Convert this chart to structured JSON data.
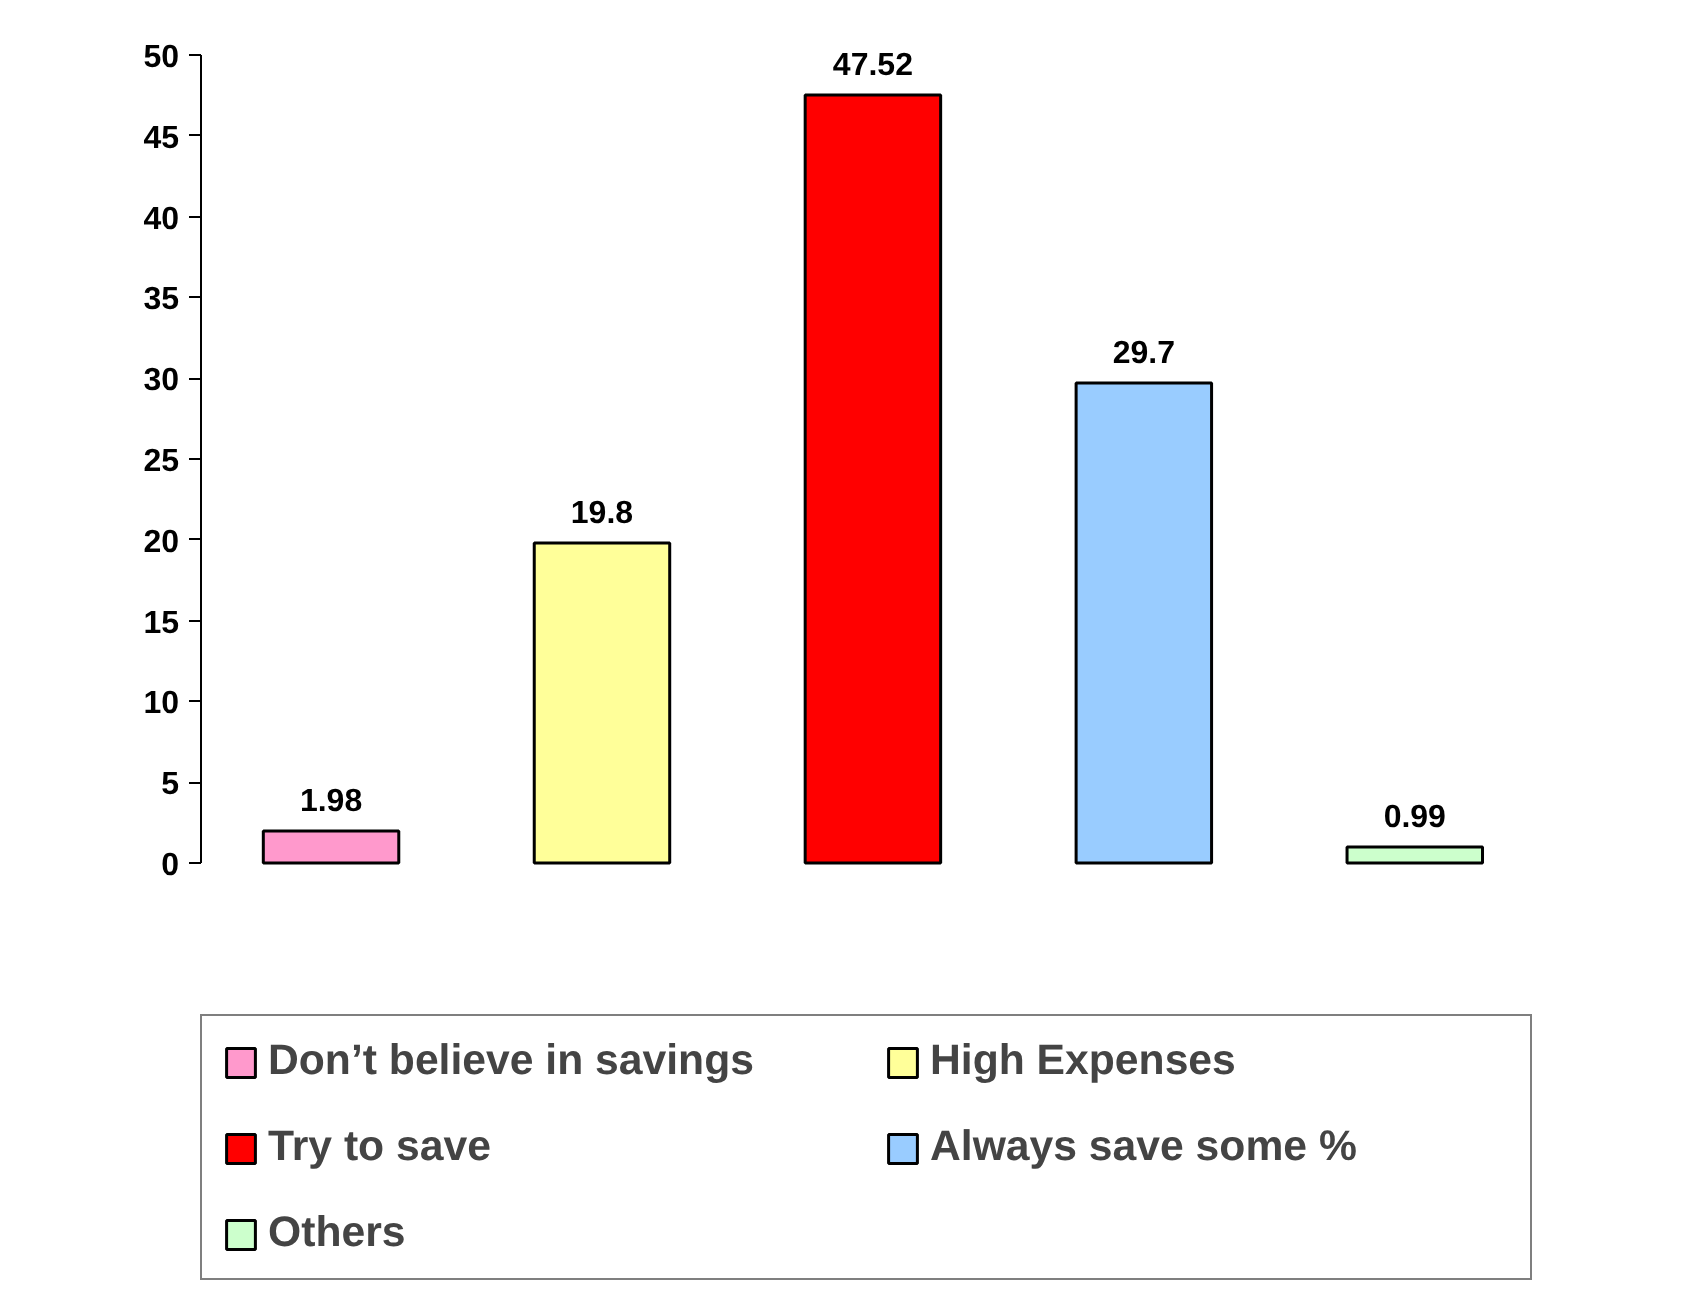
{
  "chart_data": {
    "type": "bar",
    "stacked": true,
    "categories": [
      null,
      null,
      null,
      null,
      null
    ],
    "series": [
      {
        "name": "Don’t believe in savings",
        "color": "#ff99cc",
        "values": [
          1.98,
          null,
          null,
          null,
          null
        ]
      },
      {
        "name": "High Expenses",
        "color": "#ffff99",
        "values": [
          null,
          19.8,
          null,
          null,
          null
        ]
      },
      {
        "name": "Try to save",
        "color": "#ff0000",
        "values": [
          null,
          null,
          47.52,
          null,
          null
        ]
      },
      {
        "name": "Always save some %",
        "color": "#99ccff",
        "values": [
          null,
          null,
          null,
          29.7,
          null
        ]
      },
      {
        "name": "Others",
        "color": "#ccffcc",
        "values": [
          null,
          null,
          null,
          null,
          0.99
        ]
      }
    ],
    "ylim": [
      0,
      50
    ],
    "yticks": [
      0,
      5,
      10,
      15,
      20,
      25,
      30,
      35,
      40,
      45,
      50
    ],
    "tick_labels": "y",
    "data_labels": true,
    "grid": false,
    "legend": "bottom"
  }
}
